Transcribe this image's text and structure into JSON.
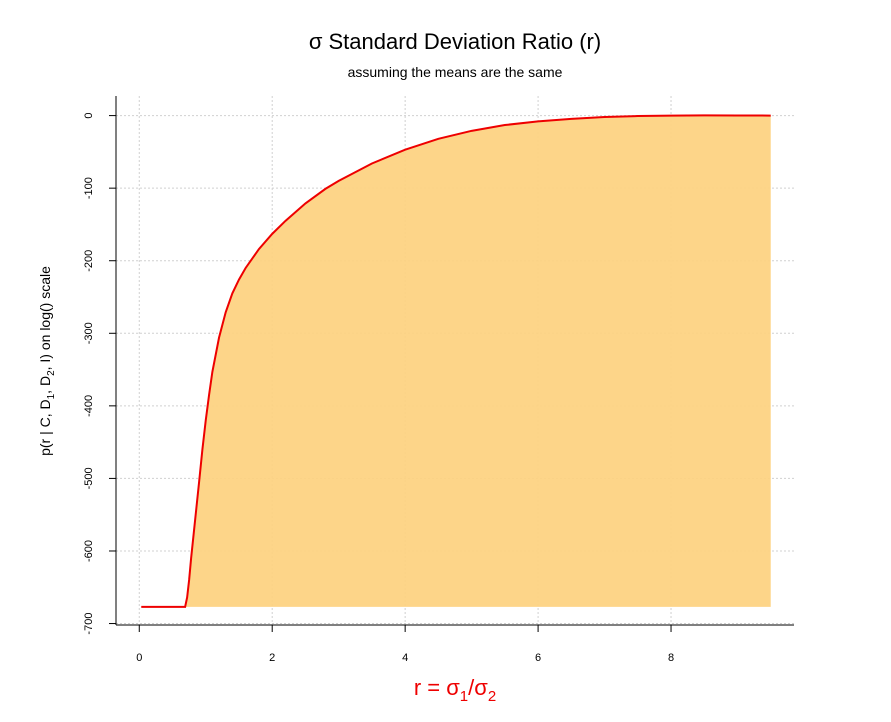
{
  "chart_data": {
    "type": "area",
    "title": "σ Standard Deviation Ratio (r)",
    "subtitle": "assuming the means are the same",
    "xlabel": {
      "base": "r = σ",
      "sub1": "1",
      "mid": "/σ",
      "sub2": "2"
    },
    "ylabel": {
      "p1": "p(r | C, D",
      "s1": "1",
      "p2": ", D",
      "s2": "2",
      "p3": ", I) on log() scale"
    },
    "xlim": [
      -0.35,
      9.85
    ],
    "ylim": [
      -702,
      27
    ],
    "x_ticks": [
      0,
      2,
      4,
      6,
      8
    ],
    "y_ticks": [
      0,
      -100,
      -200,
      -300,
      -400,
      -500,
      -600,
      -700
    ],
    "x_tick_labels": [
      "0",
      "2",
      "4",
      "6",
      "8"
    ],
    "y_tick_labels": [
      "0",
      "-100",
      "-200",
      "-300",
      "-400",
      "-500",
      "-600",
      "-700"
    ],
    "grid": true,
    "fill_baseline": -677,
    "colors": {
      "line": "#ee0000",
      "fill": "#fdd280",
      "xlabel": "#ee0000",
      "grid": "#d0d0d0"
    },
    "series": [
      {
        "x": [
          0.03,
          0.69,
          0.72,
          0.75,
          0.78,
          0.82,
          0.86,
          0.9,
          0.95,
          1.0,
          1.05,
          1.1,
          1.2,
          1.3,
          1.4,
          1.5,
          1.6,
          1.8,
          2.0,
          2.2,
          2.5,
          2.8,
          3.0,
          3.5,
          4.0,
          4.5,
          5.0,
          5.5,
          6.0,
          6.5,
          7.0,
          7.5,
          8.0,
          8.5,
          9.0,
          9.5
        ],
        "y": [
          -677,
          -677,
          -664,
          -640,
          -610,
          -575,
          -540,
          -505,
          -460,
          -420,
          -385,
          -353,
          -306,
          -271,
          -245,
          -226,
          -210,
          -184,
          -163,
          -145,
          -121,
          -101,
          -90,
          -66,
          -47,
          -32,
          -21,
          -13,
          -8,
          -4.5,
          -2,
          -0.6,
          0,
          0.3,
          0.2,
          0
        ]
      }
    ]
  }
}
